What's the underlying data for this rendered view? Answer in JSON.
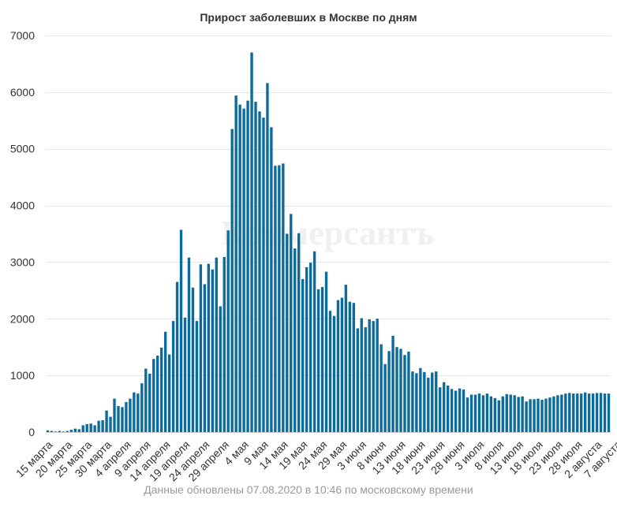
{
  "chart_data": {
    "type": "bar",
    "title": "Прирост заболевших в Москве по дням",
    "xlabel": "",
    "ylabel": "",
    "ylim": [
      0,
      7000
    ],
    "yticks": [
      0,
      1000,
      2000,
      3000,
      4000,
      5000,
      6000,
      7000
    ],
    "grid": true,
    "legend": "none",
    "bar_color": "#0a6b9c",
    "tick_labels": [
      "15 марта",
      "20 марта",
      "25 марта",
      "30 марта",
      "4 апреля",
      "9 апреля",
      "14 апреля",
      "19 апреля",
      "24 апреля",
      "29 апреля",
      "4 мая",
      "9 мая",
      "14 мая",
      "19 мая",
      "24 мая",
      "29 мая",
      "3 июня",
      "8 июня",
      "13 июня",
      "18 июня",
      "23 июня",
      "28 июня",
      "3 июля",
      "8 июля",
      "13 июля",
      "18 июля",
      "23 июля",
      "28 июля",
      "2 августа",
      "7 августа"
    ],
    "start_label": "15 марта",
    "end_label": "7 августа",
    "values": [
      30,
      20,
      10,
      20,
      10,
      20,
      40,
      60,
      50,
      120,
      140,
      150,
      120,
      200,
      210,
      380,
      270,
      590,
      460,
      440,
      530,
      590,
      700,
      680,
      860,
      1120,
      1030,
      1290,
      1350,
      1490,
      1770,
      1370,
      1960,
      2650,
      3570,
      2020,
      3080,
      2550,
      1960,
      2960,
      2610,
      2970,
      2870,
      3080,
      2220,
      3090,
      3560,
      5350,
      5940,
      5780,
      5710,
      5850,
      6700,
      5830,
      5660,
      5550,
      6160,
      5380,
      4700,
      4710,
      4740,
      3500,
      3850,
      3240,
      3510,
      2700,
      2910,
      2990,
      3190,
      2520,
      2560,
      2830,
      2140,
      2050,
      2330,
      2370,
      2600,
      2300,
      2280,
      1830,
      2010,
      1850,
      1990,
      1960,
      2000,
      1550,
      1200,
      1430,
      1700,
      1500,
      1470,
      1360,
      1420,
      1070,
      1040,
      1130,
      1060,
      960,
      1050,
      1070,
      790,
      880,
      820,
      760,
      730,
      770,
      750,
      610,
      660,
      660,
      680,
      650,
      680,
      630,
      600,
      560,
      630,
      670,
      660,
      650,
      620,
      630,
      540,
      580,
      580,
      590,
      570,
      590,
      610,
      630,
      650,
      660,
      680,
      690,
      680,
      680,
      680,
      700,
      680,
      680,
      690,
      690,
      680,
      680
    ]
  },
  "brand_watermark": "Коммерсантъ",
  "footer": {
    "updated_note": "Данные обновлены 07.08.2020 в 10:46 по московскому времени"
  }
}
